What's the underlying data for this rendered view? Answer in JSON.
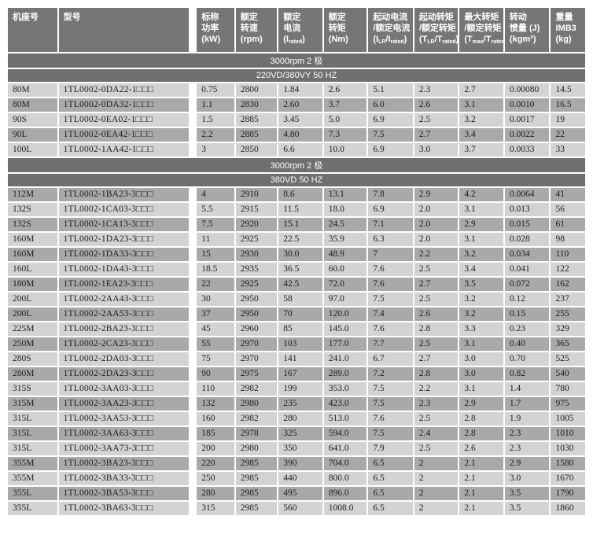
{
  "colors": {
    "header_bg": "#767676",
    "band_bg": "#6f6f6f",
    "header_fg": "#ffffff",
    "row_light": "#d3d3d3",
    "row_dark": "#a9a9a9"
  },
  "table": {
    "columns": [
      {
        "name": "frame-size",
        "lines": [
          "机座号"
        ]
      },
      {
        "name": "model",
        "lines": [
          "型号"
        ]
      },
      {
        "name": "rated-power",
        "lines": [
          "标称",
          "功率",
          "(kW)"
        ]
      },
      {
        "name": "rated-speed",
        "lines": [
          "额定",
          "转速",
          "(rpm)"
        ]
      },
      {
        "name": "rated-current",
        "lines": [
          "额定",
          "电流",
          "(I~rated~)"
        ]
      },
      {
        "name": "rated-torque",
        "lines": [
          "额定",
          "转矩",
          "(Nm)"
        ]
      },
      {
        "name": "starting-current-ratio",
        "lines": [
          "起动电流",
          "/额定电流",
          "(I~LR~/I~rated~)"
        ]
      },
      {
        "name": "starting-torque-ratio",
        "lines": [
          "起动转矩",
          "/额定转矩",
          "(T~LR~/T~rated~)"
        ]
      },
      {
        "name": "max-torque-ratio",
        "lines": [
          "最大转矩",
          "/额定转矩",
          "(T~max~/T~rated~)"
        ]
      },
      {
        "name": "moment-of-inertia",
        "lines": [
          "转动",
          "惯量 (J)",
          "(kgm²)"
        ]
      },
      {
        "name": "weight",
        "lines": [
          "重量",
          "IMB3",
          "(kg)"
        ]
      }
    ],
    "sections": [
      {
        "bands": [
          "3000rpm 2 极",
          "220VD/380VY 50 HZ"
        ],
        "start_shade": "light",
        "rows": [
          [
            "80M",
            "1TL0002-0DA22-1□□□",
            "0.75",
            "2800",
            "1.84",
            "2.6",
            "5.1",
            "2.3",
            "2.7",
            "0.00080",
            "14.5"
          ],
          [
            "80M",
            "1TL0002-0DA32-1□□□",
            "1.1",
            "2830",
            "2.60",
            "3.7",
            "6.0",
            "2.6",
            "3.1",
            "0.0010",
            "16.5"
          ],
          [
            "90S",
            "1TL0002-0EA02-1□□□",
            "1.5",
            "2885",
            "3.45",
            "5.0",
            "6.9",
            "2.5",
            "3.2",
            "0.0017",
            "19"
          ],
          [
            "90L",
            "1TL0002-0EA42-1□□□",
            "2.2",
            "2885",
            "4.80",
            "7.3",
            "7.5",
            "2.7",
            "3.4",
            "0.0022",
            "22"
          ],
          [
            "100L",
            "1TL0002-1AA42-1□□□",
            "3",
            "2850",
            "6.6",
            "10.0",
            "6.9",
            "3.0",
            "3.7",
            "0.0033",
            "33"
          ]
        ]
      },
      {
        "bands": [
          "3000rpm 2 极",
          "380VD 50 HZ"
        ],
        "start_shade": "dark",
        "rows": [
          [
            "112M",
            "1TL0002-1BA23-3□□□",
            "4",
            "2910",
            "8.6",
            "13.1",
            "7.8",
            "2.9",
            "4.2",
            "0.0064",
            "41"
          ],
          [
            "132S",
            "1TL0002-1CA03-3□□□",
            "5.5",
            "2915",
            "11.5",
            "18.0",
            "6.9",
            "2.0",
            "3.1",
            "0.013",
            "56"
          ],
          [
            "132S",
            "1TL0002-1CA13-3□□□",
            "7.5",
            "2920",
            "15.1",
            "24.5",
            "7.1",
            "2.0",
            "2.9",
            "0.015",
            "61"
          ],
          [
            "160M",
            "1TL0002-1DA23-3□□□",
            "11",
            "2925",
            "22.5",
            "35.9",
            "6.3",
            "2.0",
            "3.1",
            "0.028",
            "98"
          ],
          [
            "160M",
            "1TL0002-1DA33-3□□□",
            "15",
            "2930",
            "30.0",
            "48.9",
            "7",
            "2.2",
            "3.2",
            "0.034",
            "110"
          ],
          [
            "160L",
            "1TL0002-1DA43-3□□□",
            "18.5",
            "2935",
            "36.5",
            "60.0",
            "7.6",
            "2.5",
            "3.4",
            "0.041",
            "122"
          ],
          [
            "180M",
            "1TL0002-1EA23-3□□□",
            "22",
            "2925",
            "42.5",
            "72.0",
            "7.6",
            "2.7",
            "3.5",
            "0.072",
            "162"
          ],
          [
            "200L",
            "1TL0002-2AA43-3□□□",
            "30",
            "2950",
            "58",
            "97.0",
            "7.5",
            "2.5",
            "3.2",
            "0.12",
            "237"
          ],
          [
            "200L",
            "1TL0002-2AA53-3□□□",
            "37",
            "2950",
            "70",
            "120.0",
            "7.4",
            "2.6",
            "3.2",
            "0.15",
            "255"
          ],
          [
            "225M",
            "1TL0002-2BA23-3□□□",
            "45",
            "2960",
            "85",
            "145.0",
            "7.6",
            "2.8",
            "3.3",
            "0.23",
            "329"
          ],
          [
            "250M",
            "1TL0002-2CA23-3□□□",
            "55",
            "2970",
            "103",
            "177.0",
            "7.7",
            "2.5",
            "3.1",
            "0.40",
            "365"
          ],
          [
            "280S",
            "1TL0002-2DA03-3□□□",
            "75",
            "2970",
            "141",
            "241.0",
            "6.7",
            "2.7",
            "3.0",
            "0.70",
            "525"
          ],
          [
            "280M",
            "1TL0002-2DA23-3□□□",
            "90",
            "2975",
            "167",
            "289.0",
            "7.2",
            "2.8",
            "3.0",
            "0.82",
            "540"
          ],
          [
            "315S",
            "1TL0002-3AA03-3□□□",
            "110",
            "2982",
            "199",
            "353.0",
            "7.5",
            "2.2",
            "3.1",
            "1.4",
            "780"
          ],
          [
            "315M",
            "1TL0002-3AA23-3□□□",
            "132",
            "2980",
            "235",
            "423.0",
            "7.5",
            "2.3",
            "2.9",
            "1.7",
            "975"
          ],
          [
            "315L",
            "1TL0002-3AA53-3□□□",
            "160",
            "2982",
            "280",
            "513.0",
            "7.6",
            "2.5",
            "2.8",
            "1.9",
            "1005"
          ],
          [
            "315L",
            "1TL0002-3AA63-3□□□",
            "185",
            "2978",
            "325",
            "594.0",
            "7.5",
            "2.4",
            "2.8",
            "2.3",
            "1010"
          ],
          [
            "315L",
            "1TL0002-3AA73-3□□□",
            "200",
            "2980",
            "350",
            "641.0",
            "7.9",
            "2.5",
            "2.6",
            "2.3",
            "1030"
          ],
          [
            "355M",
            "1TL0002-3BA23-3□□□",
            "220",
            "2985",
            "390",
            "704.0",
            "6.5",
            "2",
            "2.1",
            "2.9",
            "1580"
          ],
          [
            "355M",
            "1TL0002-3BA33-3□□□",
            "250",
            "2985",
            "440",
            "800.0",
            "6.5",
            "2",
            "2.1",
            "3.0",
            "1670"
          ],
          [
            "355L",
            "1TL0002-3BA53-3□□□",
            "280",
            "2985",
            "495",
            "896.0",
            "6.5",
            "2",
            "2.1",
            "3.5",
            "1790"
          ],
          [
            "355L",
            "1TL0002-3BA63-3□□□",
            "315",
            "2985",
            "560",
            "1008.0",
            "6.5",
            "2",
            "2.1",
            "3.5",
            "1860"
          ]
        ]
      }
    ]
  }
}
